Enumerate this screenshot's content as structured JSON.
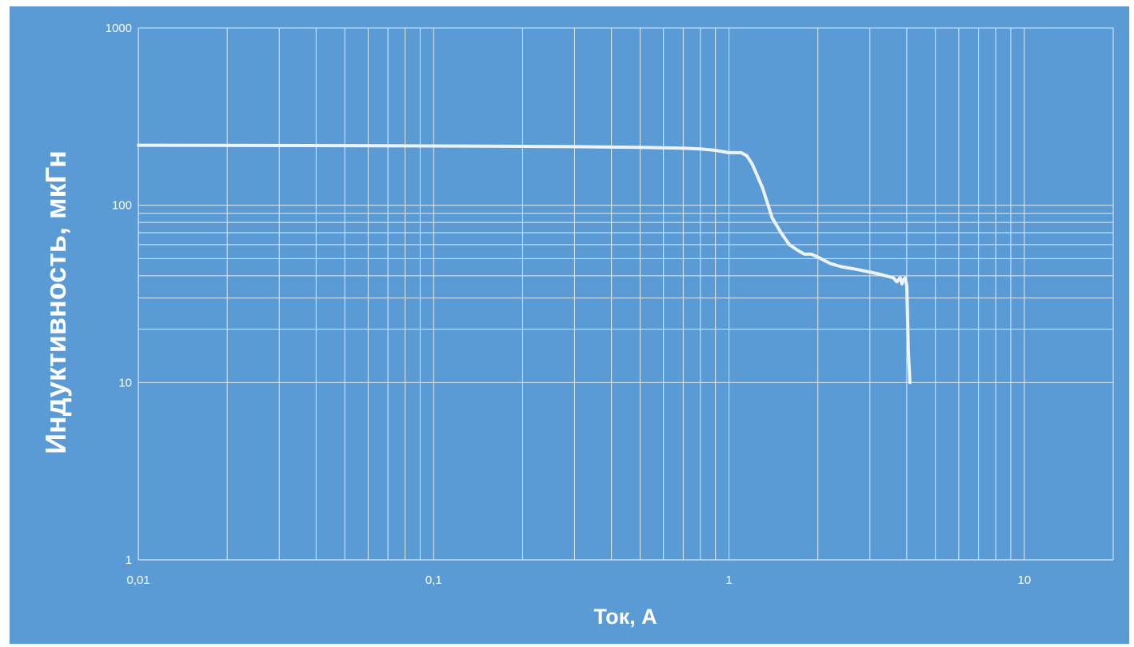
{
  "colors": {
    "background": "#5b9bd5",
    "grid": "#dce9f6",
    "line": "#eef3f9",
    "text": "#ffffff"
  },
  "chart_data": {
    "type": "line",
    "title": "",
    "xlabel": "Ток, А",
    "ylabel": "Индуктивность, мкГн",
    "x_scale": "log",
    "y_scale": "log",
    "xlim": [
      0.01,
      20
    ],
    "ylim": [
      1,
      1000
    ],
    "x_ticks": [
      0.01,
      0.1,
      1,
      10
    ],
    "x_tick_labels": [
      "0,01",
      "0,1",
      "1",
      "10"
    ],
    "y_ticks": [
      1,
      10,
      100,
      1000
    ],
    "y_tick_labels": [
      "1",
      "10",
      "100",
      "1000"
    ],
    "grid": {
      "x_major": true,
      "x_minor": true,
      "y_major": true,
      "y_minor_values": [
        20,
        30,
        40,
        50,
        60,
        70,
        80,
        90
      ]
    },
    "legend": "none",
    "series": [
      {
        "x": [
          0.01,
          0.05,
          0.1,
          0.2,
          0.3,
          0.5,
          0.7,
          0.8,
          0.9,
          1.0,
          1.1,
          1.15,
          1.2,
          1.3,
          1.4,
          1.5,
          1.6,
          1.7,
          1.8,
          1.9,
          2.0,
          2.2,
          2.4,
          2.6,
          2.8,
          3.0,
          3.2,
          3.4,
          3.6,
          3.7,
          3.8,
          3.85,
          3.9,
          3.95,
          4.0,
          4.05,
          4.1
        ],
        "y": [
          218,
          217,
          216,
          215,
          214,
          212,
          210,
          208,
          204,
          198,
          198,
          190,
          170,
          125,
          85,
          70,
          60,
          56,
          53,
          53,
          51,
          47,
          45,
          44,
          43,
          42,
          41,
          40,
          39,
          37,
          39,
          36,
          38,
          39,
          35,
          15,
          10
        ]
      }
    ]
  }
}
